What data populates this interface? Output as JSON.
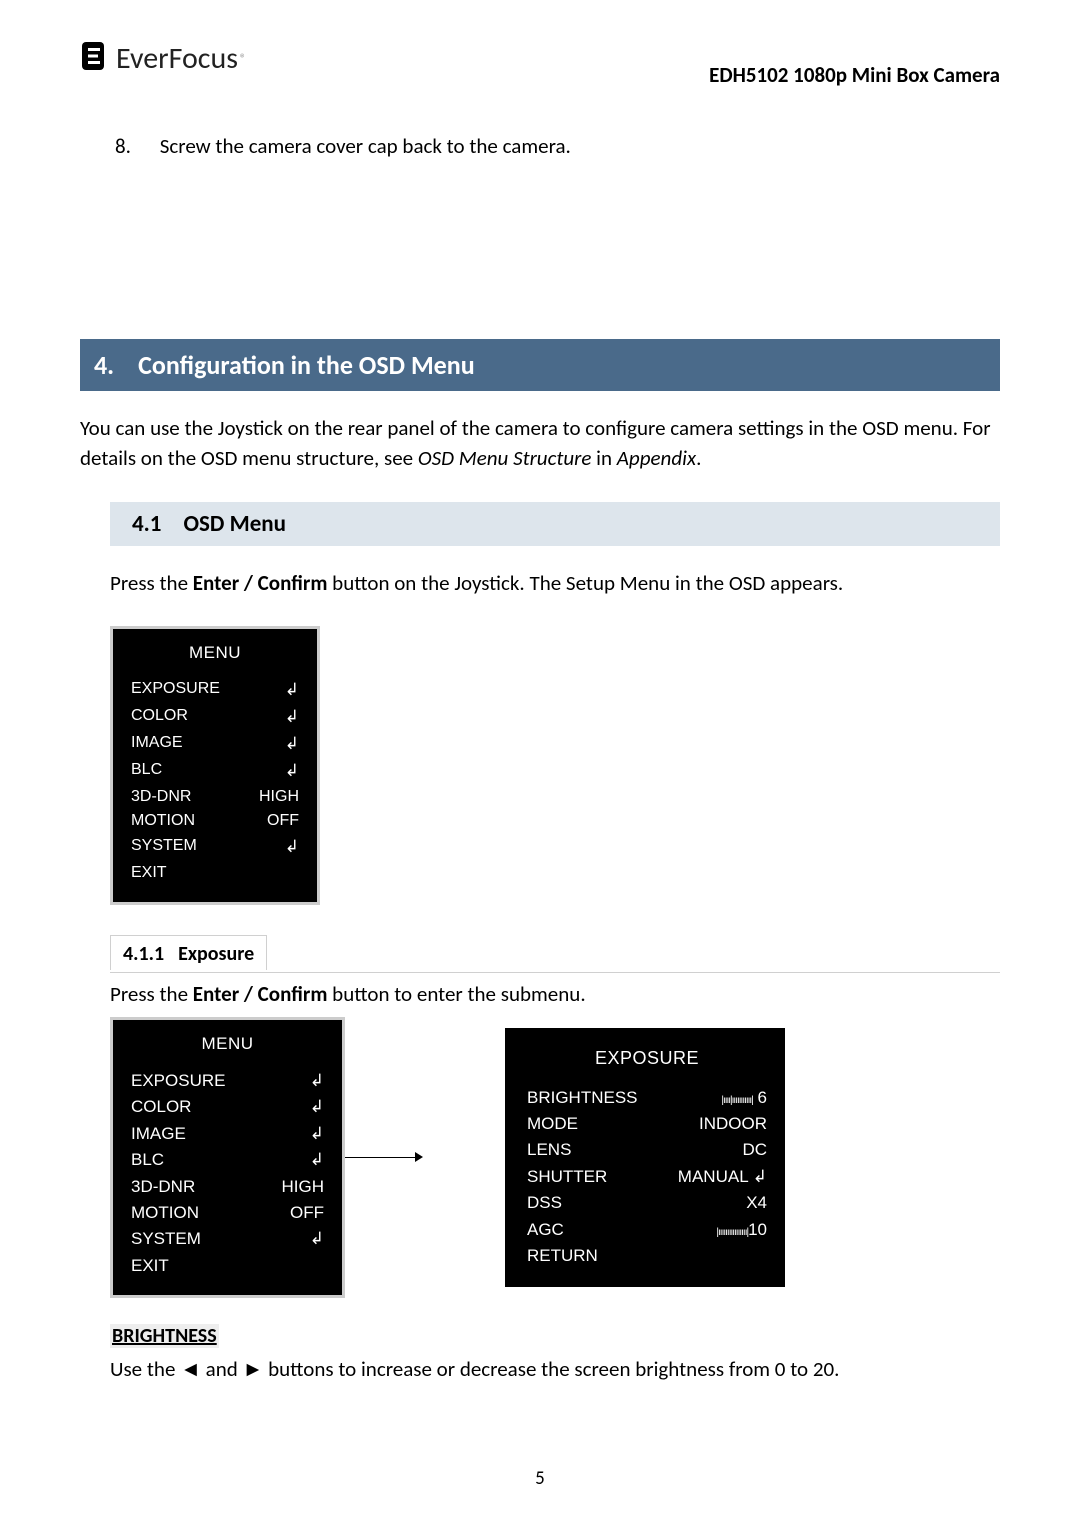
{
  "header": {
    "logo_text": "EverFocus",
    "doc_title": "EDH5102 1080p Mini Box Camera"
  },
  "step": {
    "number": "8.",
    "text": "Screw the camera cover cap back to the camera."
  },
  "section": {
    "number": "4.",
    "title": "Configuration in the OSD Menu",
    "intro_a": "You can use the Joystick on the rear panel of the camera to configure camera settings in the OSD menu. For details on the OSD menu structure, see ",
    "intro_italic": "OSD Menu Structure",
    "intro_b": " in ",
    "intro_italic2": "Appendix",
    "intro_c": "."
  },
  "subsection": {
    "number": "4.1",
    "title": "OSD Menu",
    "instr_a": "Press the ",
    "instr_bold": "Enter / Confirm",
    "instr_b": " button on the Joystick. The Setup Menu in the OSD appears."
  },
  "osd_menu": {
    "title": "MENU",
    "rows": [
      {
        "label": "EXPOSURE",
        "val": "↲"
      },
      {
        "label": "COLOR",
        "val": "↲"
      },
      {
        "label": "IMAGE",
        "val": "↲"
      },
      {
        "label": "BLC",
        "val": "↲"
      },
      {
        "label": "3D-DNR",
        "val": "HIGH"
      },
      {
        "label": "MOTION",
        "val": "OFF"
      },
      {
        "label": "SYSTEM",
        "val": "↲"
      },
      {
        "label": "EXIT",
        "val": ""
      }
    ]
  },
  "subsub": {
    "number": "4.1.1",
    "title": "Exposure",
    "instr_a": "Press the ",
    "instr_bold": "Enter / Confirm",
    "instr_b": " button to enter the submenu."
  },
  "osd_exposure": {
    "title": "EXPOSURE",
    "rows": [
      {
        "label": "BRIGHTNESS",
        "val_slider": "|ıııı|ııııııııııı|",
        "val_num": " 6"
      },
      {
        "label": "MODE",
        "val": "INDOOR"
      },
      {
        "label": "LENS",
        "val": "DC"
      },
      {
        "label": "SHUTTER",
        "val": "MANUAL ↲"
      },
      {
        "label": "DSS",
        "val": "X4"
      },
      {
        "label": "AGC",
        "val_slider": "|ıııııııııııııııı|",
        "val_num": "10"
      },
      {
        "label": "RETURN",
        "val": ""
      }
    ]
  },
  "brightness": {
    "term": "BRIGHTNESS",
    "desc_a": "Use the ◄ and ► buttons to increase or decrease the screen brightness from 0 to 20."
  },
  "page_number": "5",
  "colors": {
    "banner_bg": "#4a6a8a",
    "subbanner_bg": "#dde5ec",
    "osd_bg": "#000000",
    "osd_fg": "#ffffff",
    "osd_border": "#cccccc"
  }
}
